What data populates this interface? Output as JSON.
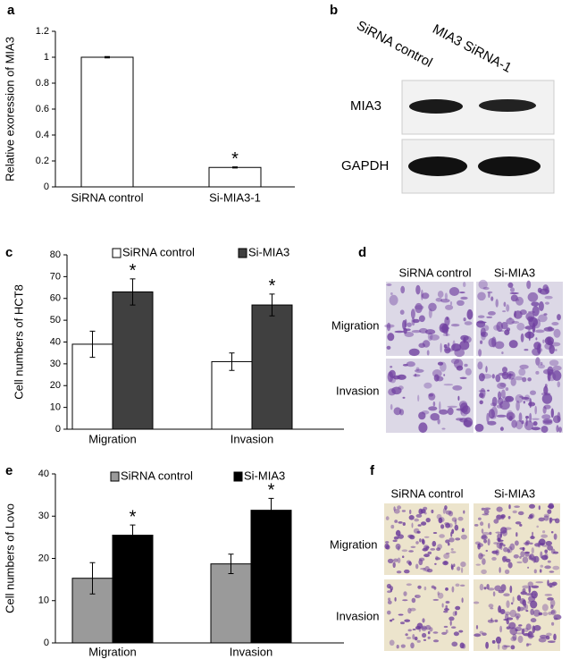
{
  "chart_data": [
    {
      "type": "bar",
      "ylabel": "Relative exoression of MIA3",
      "categories": [
        "SiRNA control",
        "Si-MIA3-1"
      ],
      "values": [
        1,
        0.15
      ],
      "errors": [
        0.005,
        0.004
      ],
      "annotations": [
        null,
        "*"
      ],
      "color": "#ffffff",
      "ylim": [
        0,
        1.2
      ],
      "yticks": [
        0,
        0.2,
        0.4,
        0.6,
        0.8,
        1,
        1.2
      ]
    },
    {
      "type": "bar",
      "ylabel": "Cell numbers of HCT8",
      "categories": [
        "Migration",
        "Invasion"
      ],
      "series": [
        {
          "name": "SiRNA control",
          "color": "#ffffff",
          "values": [
            39,
            31
          ],
          "errors": [
            6,
            4
          ],
          "annotations": [
            null,
            null
          ]
        },
        {
          "name": "Si-MIA3",
          "color": "#404040",
          "values": [
            63,
            57
          ],
          "errors": [
            6,
            5
          ],
          "annotations": [
            "*",
            "*"
          ]
        }
      ],
      "ylim": [
        0,
        80
      ],
      "yticks": [
        0,
        10,
        20,
        30,
        40,
        50,
        60,
        70,
        80
      ]
    },
    {
      "type": "bar",
      "ylabel": "Cell numbers of Lovo",
      "categories": [
        "Migration",
        "Invasion"
      ],
      "series": [
        {
          "name": "SiRNA control",
          "color": "#9a9a9a",
          "values": [
            15.3,
            18.7
          ],
          "errors": [
            3.7,
            2.3
          ],
          "annotations": [
            null,
            null
          ]
        },
        {
          "name": "Si-MIA3",
          "color": "#000000",
          "values": [
            25.5,
            31.4
          ],
          "errors": [
            2.4,
            2.8
          ],
          "annotations": [
            "*",
            "*"
          ]
        }
      ],
      "ylim": [
        0,
        40
      ],
      "yticks": [
        0,
        10,
        20,
        30,
        40
      ]
    }
  ],
  "panel_labels": [
    "a",
    "b",
    "c",
    "d",
    "e",
    "f"
  ],
  "blot": {
    "lanes": [
      "SiRNA control",
      "MIA3 SiRNA-1"
    ],
    "bands": [
      "MIA3",
      "GAPDH"
    ]
  },
  "micrograph_d": {
    "columns": [
      "SiRNA control",
      "Si-MIA3"
    ],
    "rows": [
      "Migration",
      "Invasion"
    ]
  },
  "micrograph_f": {
    "columns": [
      "SiRNA control",
      "Si-MIA3"
    ],
    "rows": [
      "Migration",
      "Invasion"
    ]
  }
}
